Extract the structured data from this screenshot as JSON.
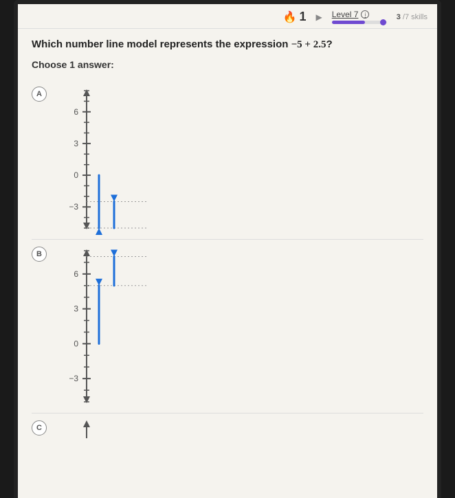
{
  "topbar": {
    "streak_count": "1",
    "level_label": "Level 7",
    "skills_done": "3",
    "skills_total": "7",
    "skills_word": "skills",
    "progress_pct": 60,
    "dot_pct": 88
  },
  "question": {
    "prefix": "Which number line model represents the expression ",
    "expr": "−5 + 2.5",
    "suffix": "?"
  },
  "choose_label": "Choose 1 answer:",
  "options": {
    "a": {
      "letter": "A"
    },
    "b": {
      "letter": "B"
    },
    "c": {
      "letter": "C"
    }
  },
  "chart_common": {
    "axis_color": "#555555",
    "tick_color": "#555555",
    "label_color": "#555555",
    "arrow_color": "#1e6fd9",
    "dotted_color": "#999999",
    "label_fontsize": 12,
    "tick_values": [
      -3,
      0,
      3,
      6
    ],
    "y_min": -5,
    "y_max": 8,
    "minor_step": 1
  },
  "chart_a": {
    "type": "vertical-number-line",
    "arrows": [
      {
        "x": 0,
        "from": 0,
        "to": -5,
        "head": "down"
      },
      {
        "x": 1,
        "from": -5,
        "to": -2.5,
        "head": "up"
      }
    ],
    "dotted": [
      -2.5,
      -5
    ]
  },
  "chart_b": {
    "type": "vertical-number-line",
    "arrows": [
      {
        "x": 0,
        "from": 0,
        "to": 5,
        "head": "up"
      },
      {
        "x": 1,
        "from": 5,
        "to": 7.5,
        "head": "up"
      }
    ],
    "dotted": [
      5,
      7.5
    ]
  }
}
